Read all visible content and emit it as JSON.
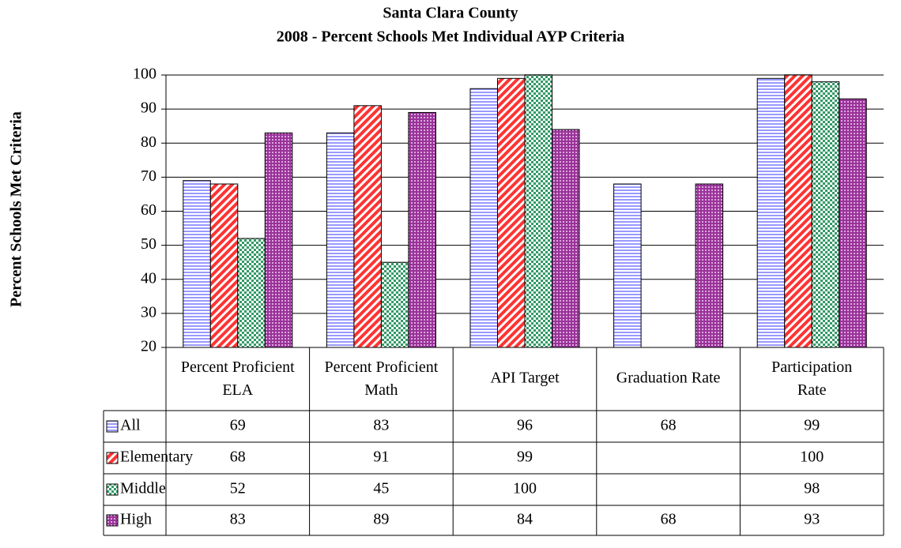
{
  "chart_data": {
    "type": "bar",
    "title": "Santa Clara County",
    "subtitle": "2008 - Percent Schools Met Individual AYP Criteria",
    "y_label": "Percent Schools Met Criteria",
    "categories": [
      "Percent Proficient ELA",
      "Percent Proficient Math",
      "API Target",
      "Graduation Rate",
      "Participation Rate"
    ],
    "series": [
      {
        "name": "All",
        "color": "#9999ff",
        "values": [
          69,
          83,
          96,
          68,
          99
        ]
      },
      {
        "name": "Elementary",
        "color": "#ff3333",
        "values": [
          68,
          91,
          99,
          null,
          100
        ]
      },
      {
        "name": "Middle",
        "color": "#339966",
        "values": [
          52,
          45,
          100,
          null,
          98
        ]
      },
      {
        "name": "High",
        "color": "#993399",
        "values": [
          83,
          89,
          84,
          68,
          93
        ]
      }
    ],
    "ylim": [
      20,
      100
    ],
    "yticks": [
      20,
      30,
      40,
      50,
      60,
      70,
      80,
      90,
      100
    ],
    "grid": true,
    "data_table": true
  }
}
